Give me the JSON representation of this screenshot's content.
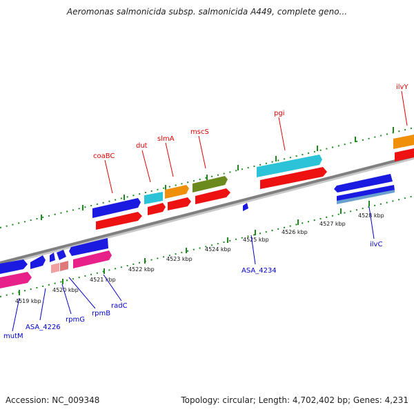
{
  "title": "Aeromonas salmonicida subsp. salmonicida A449, complete geno...",
  "footer": {
    "accession": "Accession: NC_009348",
    "summary": "Topology: circular; Length: 4,702,402 bp; Genes: 4,231"
  },
  "kbp_labels": [
    "4519 kbp",
    "4520 kbp",
    "4521 kbp",
    "4522 kbp",
    "4523 kbp",
    "4524 kbp",
    "4525 kbp",
    "4526 kbp",
    "4527 kbp",
    "4528 kbp"
  ],
  "gene_labels_top": [
    "coaBC",
    "dut",
    "slmA",
    "mscS",
    "pgi",
    "ilvY"
  ],
  "gene_labels_bottom": [
    "mutM",
    "ASA_4226",
    "rpmG",
    "rpmB",
    "radC",
    "ASA_4234",
    "ilvC"
  ],
  "colors": {
    "red": "#ee1111",
    "blue": "#1a1ae0",
    "pink": "#e8218a",
    "cyan": "#2cc3d8",
    "orange": "#f0900a",
    "olive": "#6a8a1e",
    "tick_green": "#1a8a1a",
    "backbone": "#888888"
  }
}
